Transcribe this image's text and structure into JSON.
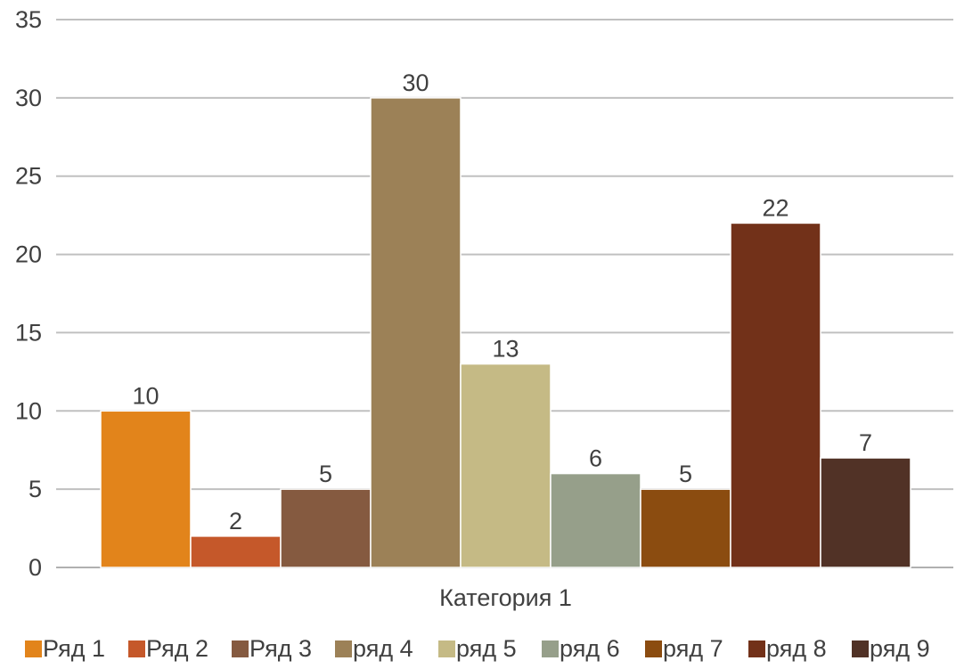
{
  "chart_data": {
    "type": "bar",
    "categories": [
      "Категория 1"
    ],
    "series": [
      {
        "name": "Ряд 1",
        "values": [
          10
        ],
        "color": "#e2841b"
      },
      {
        "name": "Ряд 2",
        "values": [
          2
        ],
        "color": "#c5582a"
      },
      {
        "name": "Ряд 3",
        "values": [
          5
        ],
        "color": "#855a40"
      },
      {
        "name": "ряд 4",
        "values": [
          30
        ],
        "color": "#9c8157"
      },
      {
        "name": "ряд 5",
        "values": [
          13
        ],
        "color": "#c5ba85"
      },
      {
        "name": "ряд 6",
        "values": [
          6
        ],
        "color": "#969f8a"
      },
      {
        "name": "ряд 7",
        "values": [
          5
        ],
        "color": "#8b4c10"
      },
      {
        "name": "ряд 8",
        "values": [
          22
        ],
        "color": "#723119"
      },
      {
        "name": "ряд 9",
        "values": [
          7
        ],
        "color": "#513226"
      }
    ],
    "ylim": [
      0,
      35
    ],
    "yticks": [
      0,
      5,
      10,
      15,
      20,
      25,
      30,
      35
    ],
    "grid": true,
    "data_labels": true,
    "legend_position": "bottom"
  }
}
